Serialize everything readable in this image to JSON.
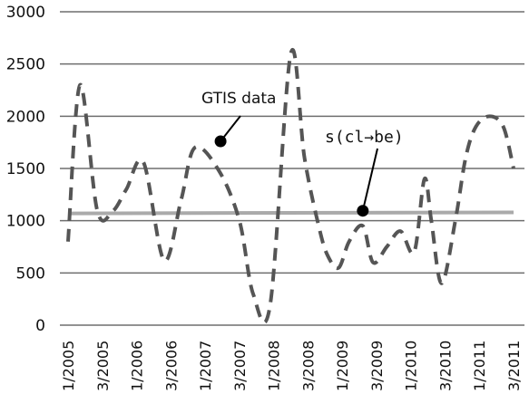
{
  "chart_data": {
    "type": "line",
    "title": "",
    "xlabel": "",
    "ylabel": "",
    "ylim": [
      0,
      3000
    ],
    "yticks": [
      "0",
      "500",
      "1000",
      "1500",
      "2000",
      "2500",
      "3000"
    ],
    "x_labels": [
      "1/2005",
      "3/2005",
      "1/2006",
      "3/2006",
      "1/2007",
      "3/2007",
      "1/2008",
      "3/2008",
      "1/2009",
      "3/2009",
      "1/2010",
      "3/2010",
      "1/2011",
      "3/2011"
    ],
    "grid": true,
    "series": [
      {
        "name": "GTIS data",
        "style": "dashed",
        "color": "#555555",
        "x": [
          0,
          0.35,
          0.85,
          1.3,
          1.7,
          2.2,
          2.8,
          3.3,
          3.7,
          4.4,
          5.0,
          5.4,
          5.9,
          6.5,
          6.9,
          7.35,
          7.6,
          7.9,
          8.2,
          8.6,
          8.9,
          9.3,
          9.7,
          10.1,
          10.4,
          10.6,
          10.9,
          11.3,
          11.6,
          11.9,
          12.3,
          12.7,
          13.0
        ],
        "y": [
          800,
          2300,
          1100,
          1090,
          1300,
          1560,
          620,
          1200,
          1700,
          1480,
          1000,
          300,
          200,
          2600,
          1600,
          900,
          650,
          550,
          800,
          950,
          600,
          750,
          900,
          700,
          1400,
          1000,
          400,
          1000,
          1600,
          1900,
          2000,
          1900,
          1500
        ]
      },
      {
        "name": "s(cl→be)",
        "style": "solid",
        "color": "#aaaaaa",
        "x": [
          0,
          13.0
        ],
        "y": [
          1070,
          1080
        ]
      }
    ],
    "annotations": [
      {
        "text": "GTIS data",
        "series": "GTIS data"
      },
      {
        "text": "s(cl→be)",
        "series": "s(cl→be)"
      }
    ]
  }
}
